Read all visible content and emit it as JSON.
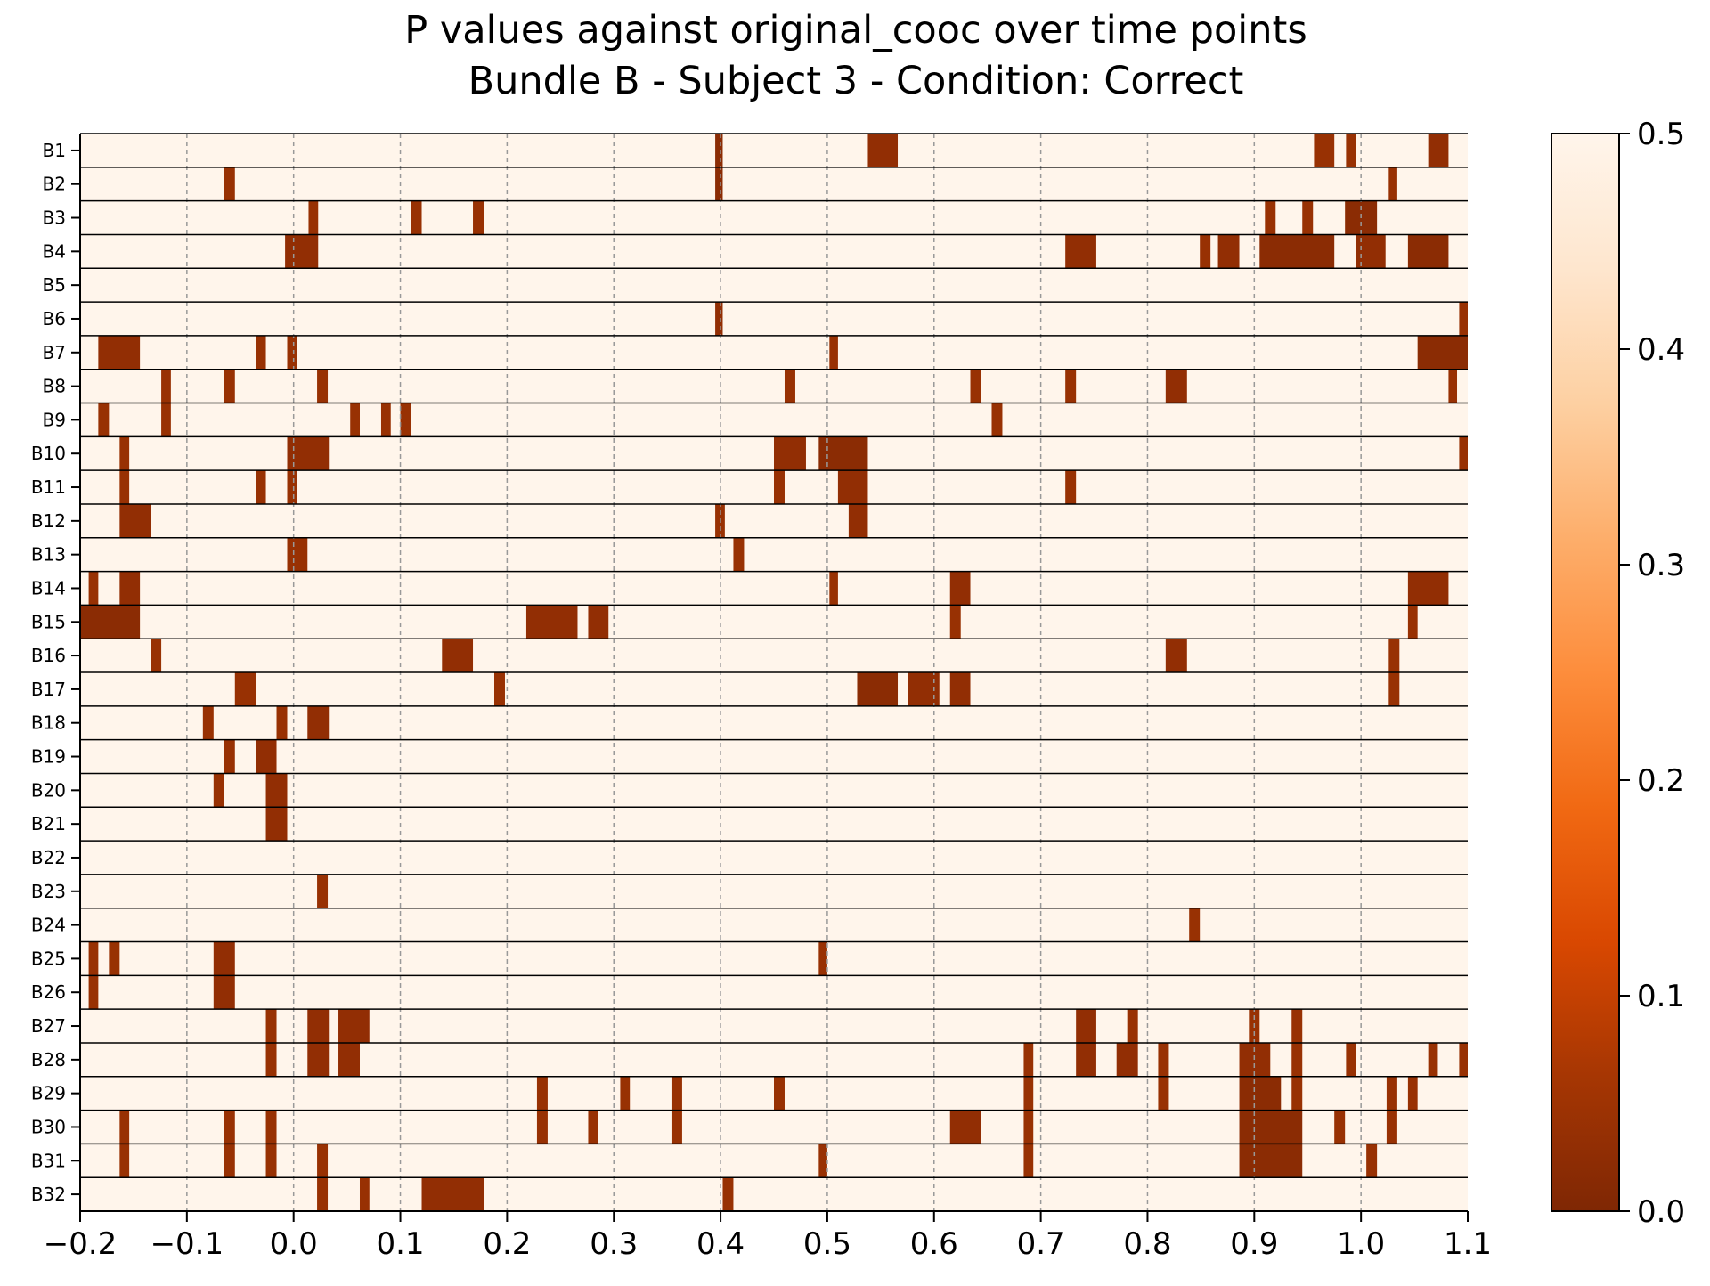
{
  "chart_data": {
    "type": "heatmap",
    "title": "P values against original_cooc over time points",
    "subtitle": "Bundle B - Subject 3 - Condition: Correct",
    "xlabel": "",
    "ylabel": "",
    "xlim": [
      -0.2,
      1.1
    ],
    "x_ticks": [
      "−0.2",
      "−0.1",
      "0.0",
      "0.1",
      "0.2",
      "0.3",
      "0.4",
      "0.5",
      "0.6",
      "0.7",
      "0.8",
      "0.9",
      "1.0",
      "1.1"
    ],
    "x_tick_values": [
      -0.2,
      -0.1,
      0.0,
      0.1,
      0.2,
      0.3,
      0.4,
      0.5,
      0.6,
      0.7,
      0.8,
      0.9,
      1.0,
      1.1
    ],
    "rows": [
      "B1",
      "B2",
      "B3",
      "B4",
      "B5",
      "B6",
      "B7",
      "B8",
      "B9",
      "B10",
      "B11",
      "B12",
      "B13",
      "B14",
      "B15",
      "B16",
      "B17",
      "B18",
      "B19",
      "B20",
      "B21",
      "B22",
      "B23",
      "B24",
      "B25",
      "B26",
      "B27",
      "B28",
      "B29",
      "B30",
      "B31",
      "B32"
    ],
    "colorbar": {
      "vmin": 0.0,
      "vmax": 0.5,
      "ticks": [
        "0.0",
        "0.1",
        "0.2",
        "0.3",
        "0.4",
        "0.5"
      ],
      "tick_values": [
        0.0,
        0.1,
        0.2,
        0.3,
        0.4,
        0.5
      ],
      "colormap": [
        "#7f2704",
        "#a63603",
        "#d94801",
        "#f16913",
        "#fd8d3c",
        "#fdae6b",
        "#fdd0a2",
        "#fee6ce",
        "#fff5eb"
      ]
    },
    "background_value": 0.5,
    "vertical_gridlines": "dashed gray at x ticks",
    "significant_segments_note": "segments listed as [x_start, x_end, p_value]",
    "significant_segments": {
      "B1": [
        [
          0.395,
          0.402,
          0.02
        ],
        [
          0.538,
          0.566,
          0.03
        ],
        [
          0.956,
          0.975,
          0.04
        ],
        [
          0.986,
          0.995,
          0.04
        ],
        [
          1.063,
          1.082,
          0.03
        ]
      ],
      "B2": [
        [
          -0.065,
          -0.055,
          0.04
        ],
        [
          0.395,
          0.402,
          0.02
        ],
        [
          1.026,
          1.034,
          0.04
        ]
      ],
      "B3": [
        [
          0.014,
          0.023,
          0.04
        ],
        [
          0.11,
          0.12,
          0.04
        ],
        [
          0.168,
          0.178,
          0.04
        ],
        [
          0.91,
          0.92,
          0.04
        ],
        [
          0.945,
          0.955,
          0.04
        ],
        [
          0.985,
          1.015,
          0.02
        ]
      ],
      "B4": [
        [
          -0.008,
          0.023,
          0.03
        ],
        [
          0.723,
          0.752,
          0.03
        ],
        [
          0.849,
          0.859,
          0.04
        ],
        [
          0.866,
          0.886,
          0.03
        ],
        [
          0.905,
          0.975,
          0.02
        ],
        [
          0.995,
          1.023,
          0.03
        ],
        [
          1.044,
          1.082,
          0.02
        ]
      ],
      "B5": [],
      "B6": [
        [
          0.395,
          0.402,
          0.03
        ],
        [
          1.092,
          1.1,
          0.04
        ]
      ],
      "B7": [
        [
          -0.183,
          -0.144,
          0.03
        ],
        [
          -0.035,
          -0.026,
          0.04
        ],
        [
          -0.006,
          0.003,
          0.04
        ],
        [
          0.502,
          0.51,
          0.04
        ],
        [
          1.053,
          1.1,
          0.02
        ]
      ],
      "B8": [
        [
          -0.124,
          -0.115,
          0.04
        ],
        [
          -0.065,
          -0.055,
          0.04
        ],
        [
          0.022,
          0.032,
          0.04
        ],
        [
          0.46,
          0.47,
          0.04
        ],
        [
          0.634,
          0.644,
          0.04
        ],
        [
          0.723,
          0.733,
          0.04
        ],
        [
          0.817,
          0.837,
          0.03
        ],
        [
          1.082,
          1.09,
          0.04
        ]
      ],
      "B9": [
        [
          -0.183,
          -0.173,
          0.04
        ],
        [
          -0.124,
          -0.115,
          0.04
        ],
        [
          0.053,
          0.062,
          0.04
        ],
        [
          0.082,
          0.091,
          0.04
        ],
        [
          0.1,
          0.11,
          0.04
        ],
        [
          0.654,
          0.664,
          0.04
        ]
      ],
      "B10": [
        [
          -0.163,
          -0.154,
          0.04
        ],
        [
          -0.006,
          0.033,
          0.03
        ],
        [
          0.45,
          0.48,
          0.03
        ],
        [
          0.492,
          0.538,
          0.02
        ],
        [
          1.092,
          1.1,
          0.04
        ]
      ],
      "B11": [
        [
          -0.163,
          -0.154,
          0.04
        ],
        [
          -0.035,
          -0.026,
          0.04
        ],
        [
          -0.006,
          0.003,
          0.04
        ],
        [
          0.45,
          0.46,
          0.04
        ],
        [
          0.51,
          0.538,
          0.03
        ],
        [
          0.723,
          0.733,
          0.04
        ]
      ],
      "B12": [
        [
          -0.163,
          -0.134,
          0.03
        ],
        [
          0.395,
          0.404,
          0.04
        ],
        [
          0.52,
          0.538,
          0.03
        ]
      ],
      "B13": [
        [
          -0.006,
          0.013,
          0.04
        ],
        [
          0.412,
          0.422,
          0.04
        ]
      ],
      "B14": [
        [
          -0.192,
          -0.183,
          0.04
        ],
        [
          -0.163,
          -0.144,
          0.03
        ],
        [
          0.502,
          0.51,
          0.04
        ],
        [
          0.615,
          0.634,
          0.03
        ],
        [
          1.044,
          1.082,
          0.03
        ]
      ],
      "B15": [
        [
          -0.2,
          -0.144,
          0.02
        ],
        [
          0.218,
          0.266,
          0.03
        ],
        [
          0.276,
          0.295,
          0.03
        ],
        [
          0.615,
          0.625,
          0.04
        ],
        [
          1.044,
          1.053,
          0.04
        ]
      ],
      "B16": [
        [
          -0.134,
          -0.124,
          0.04
        ],
        [
          0.139,
          0.168,
          0.03
        ],
        [
          0.817,
          0.837,
          0.03
        ],
        [
          1.026,
          1.036,
          0.04
        ]
      ],
      "B17": [
        [
          -0.055,
          -0.035,
          0.04
        ],
        [
          0.188,
          0.198,
          0.04
        ],
        [
          0.528,
          0.566,
          0.02
        ],
        [
          0.576,
          0.605,
          0.03
        ],
        [
          0.615,
          0.634,
          0.03
        ],
        [
          1.026,
          1.036,
          0.04
        ]
      ],
      "B18": [
        [
          -0.085,
          -0.075,
          0.04
        ],
        [
          -0.016,
          -0.006,
          0.04
        ],
        [
          0.013,
          0.033,
          0.03
        ]
      ],
      "B19": [
        [
          -0.065,
          -0.055,
          0.04
        ],
        [
          -0.035,
          -0.016,
          0.03
        ]
      ],
      "B20": [
        [
          -0.075,
          -0.065,
          0.04
        ],
        [
          -0.026,
          -0.006,
          0.03
        ]
      ],
      "B21": [
        [
          -0.026,
          -0.006,
          0.03
        ]
      ],
      "B22": [],
      "B23": [
        [
          0.022,
          0.032,
          0.04
        ]
      ],
      "B24": [
        [
          0.839,
          0.849,
          0.04
        ]
      ],
      "B25": [
        [
          -0.192,
          -0.183,
          0.04
        ],
        [
          -0.173,
          -0.163,
          0.04
        ],
        [
          -0.075,
          -0.055,
          0.03
        ],
        [
          0.492,
          0.5,
          0.04
        ]
      ],
      "B26": [
        [
          -0.192,
          -0.183,
          0.04
        ],
        [
          -0.075,
          -0.055,
          0.03
        ]
      ],
      "B27": [
        [
          -0.026,
          -0.016,
          0.04
        ],
        [
          0.013,
          0.033,
          0.03
        ],
        [
          0.042,
          0.071,
          0.03
        ],
        [
          0.733,
          0.752,
          0.03
        ],
        [
          0.781,
          0.791,
          0.04
        ],
        [
          0.895,
          0.905,
          0.04
        ],
        [
          0.935,
          0.945,
          0.04
        ]
      ],
      "B28": [
        [
          -0.026,
          -0.016,
          0.04
        ],
        [
          0.013,
          0.033,
          0.03
        ],
        [
          0.042,
          0.062,
          0.03
        ],
        [
          0.684,
          0.693,
          0.04
        ],
        [
          0.733,
          0.752,
          0.03
        ],
        [
          0.771,
          0.791,
          0.03
        ],
        [
          0.81,
          0.82,
          0.04
        ],
        [
          0.886,
          0.915,
          0.03
        ],
        [
          0.935,
          0.945,
          0.04
        ],
        [
          0.986,
          0.995,
          0.04
        ],
        [
          1.063,
          1.072,
          0.04
        ],
        [
          1.092,
          1.1,
          0.04
        ]
      ],
      "B29": [
        [
          0.228,
          0.238,
          0.04
        ],
        [
          0.306,
          0.315,
          0.04
        ],
        [
          0.354,
          0.364,
          0.04
        ],
        [
          0.45,
          0.46,
          0.04
        ],
        [
          0.684,
          0.693,
          0.04
        ],
        [
          0.81,
          0.82,
          0.04
        ],
        [
          0.886,
          0.925,
          0.02
        ],
        [
          0.935,
          0.945,
          0.04
        ],
        [
          1.024,
          1.034,
          0.04
        ],
        [
          1.044,
          1.053,
          0.04
        ]
      ],
      "B30": [
        [
          -0.163,
          -0.154,
          0.04
        ],
        [
          -0.065,
          -0.055,
          0.04
        ],
        [
          -0.026,
          -0.016,
          0.04
        ],
        [
          0.228,
          0.238,
          0.04
        ],
        [
          0.276,
          0.285,
          0.04
        ],
        [
          0.354,
          0.364,
          0.04
        ],
        [
          0.615,
          0.644,
          0.03
        ],
        [
          0.684,
          0.693,
          0.04
        ],
        [
          0.886,
          0.945,
          0.02
        ],
        [
          0.975,
          0.985,
          0.04
        ],
        [
          1.024,
          1.034,
          0.04
        ]
      ],
      "B31": [
        [
          -0.163,
          -0.154,
          0.04
        ],
        [
          -0.065,
          -0.055,
          0.04
        ],
        [
          -0.026,
          -0.016,
          0.04
        ],
        [
          0.022,
          0.032,
          0.04
        ],
        [
          0.492,
          0.5,
          0.04
        ],
        [
          0.684,
          0.693,
          0.04
        ],
        [
          0.886,
          0.945,
          0.02
        ],
        [
          1.005,
          1.015,
          0.04
        ]
      ],
      "B32": [
        [
          0.022,
          0.032,
          0.04
        ],
        [
          0.062,
          0.071,
          0.04
        ],
        [
          0.12,
          0.178,
          0.03
        ],
        [
          0.402,
          0.412,
          0.04
        ]
      ]
    }
  }
}
